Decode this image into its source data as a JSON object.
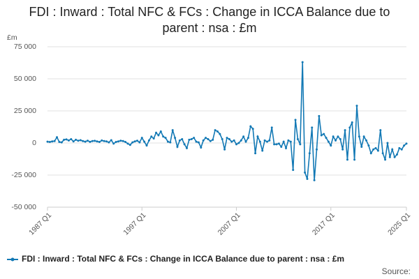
{
  "chart_data": {
    "type": "line",
    "title": "FDI : Inward : Total NFC & FCs : Change in ICCA Balance due to parent : nsa : £m",
    "y_label": "£m",
    "source": "Source:",
    "categories": [
      "1987 Q1",
      null,
      null,
      null,
      null,
      null,
      null,
      null,
      null,
      null,
      null,
      null,
      null,
      null,
      null,
      null,
      null,
      null,
      null,
      null,
      null,
      null,
      null,
      null,
      null,
      null,
      null,
      null,
      null,
      null,
      null,
      null,
      null,
      null,
      null,
      null,
      null,
      null,
      null,
      null,
      "1997 Q1",
      null,
      null,
      null,
      null,
      null,
      null,
      null,
      null,
      null,
      null,
      null,
      null,
      null,
      null,
      null,
      null,
      null,
      null,
      null,
      null,
      null,
      null,
      null,
      null,
      null,
      null,
      null,
      null,
      null,
      null,
      null,
      null,
      null,
      null,
      null,
      null,
      null,
      null,
      null,
      "2007 Q1",
      null,
      null,
      null,
      null,
      null,
      null,
      null,
      null,
      null,
      null,
      null,
      null,
      null,
      null,
      null,
      null,
      null,
      null,
      null,
      null,
      null,
      null,
      null,
      null,
      null,
      null,
      null,
      null,
      null,
      null,
      null,
      null,
      null,
      null,
      null,
      null,
      null,
      null,
      null,
      "2017 Q1",
      null,
      null,
      null,
      null,
      null,
      null,
      null,
      null,
      null,
      null,
      null,
      null,
      null,
      null,
      null,
      null,
      null,
      null,
      null,
      null,
      null,
      null,
      null,
      null,
      null,
      null,
      null,
      null,
      null,
      null,
      null,
      "2025 Q1"
    ],
    "series": [
      {
        "name": "FDI : Inward : Total NFC & FCs : Change in ICCA Balance due to parent : nsa : £m",
        "color": "#1379b5",
        "values": [
          1000,
          800,
          1200,
          1500,
          4500,
          800,
          500,
          2500,
          2800,
          2000,
          3000,
          1200,
          2500,
          1800,
          2200,
          1500,
          1000,
          1800,
          900,
          1500,
          1700,
          1200,
          800,
          2000,
          1500,
          1200,
          500,
          2200,
          -500,
          800,
          1200,
          1800,
          1500,
          800,
          -500,
          -1500,
          500,
          1200,
          1800,
          500,
          4000,
          1000,
          -2000,
          2000,
          5000,
          3500,
          8000,
          6000,
          9000,
          5000,
          4000,
          1000,
          500,
          10000,
          4000,
          -3000,
          2000,
          3000,
          -1000,
          -4000,
          2500,
          3000,
          4000,
          1000,
          500,
          -3500,
          2000,
          4000,
          3000,
          1500,
          2500,
          10000,
          9000,
          7000,
          3000,
          -5000,
          4000,
          3000,
          1000,
          2000,
          -1000,
          0,
          2000,
          5000,
          1000,
          4000,
          13000,
          11000,
          -8000,
          5000,
          1000,
          -6000,
          2000,
          1000,
          2000,
          12000,
          -1000,
          -1000,
          -500,
          -3000,
          1000,
          -4000,
          2000,
          1000,
          -21000,
          18000,
          3000,
          -1000,
          63000,
          -23000,
          -28000,
          -8000,
          12000,
          -29000,
          -5000,
          21000,
          6000,
          7000,
          4000,
          1000,
          -2000,
          5000,
          2000,
          5000,
          3000,
          -5000,
          10000,
          -13000,
          12000,
          16000,
          -13000,
          29000,
          5000,
          -3000,
          5000,
          2000,
          -2000,
          -8000,
          -5000,
          -4000,
          -6000,
          10000,
          -8000,
          -13000,
          0,
          -11000,
          -5000,
          -11000,
          -9000,
          -4000,
          -5000,
          -2000,
          -500
        ]
      }
    ],
    "ylim": [
      -50000,
      75000
    ],
    "yticks": [
      {
        "value": -50000,
        "label": "-50 000"
      },
      {
        "value": -25000,
        "label": "-25 000"
      },
      0,
      {
        "value": 25000,
        "label": "25 000"
      },
      {
        "value": 50000,
        "label": "50 000"
      },
      {
        "value": 75000,
        "label": "75 000"
      }
    ],
    "grid": true,
    "legend": "bottom"
  }
}
